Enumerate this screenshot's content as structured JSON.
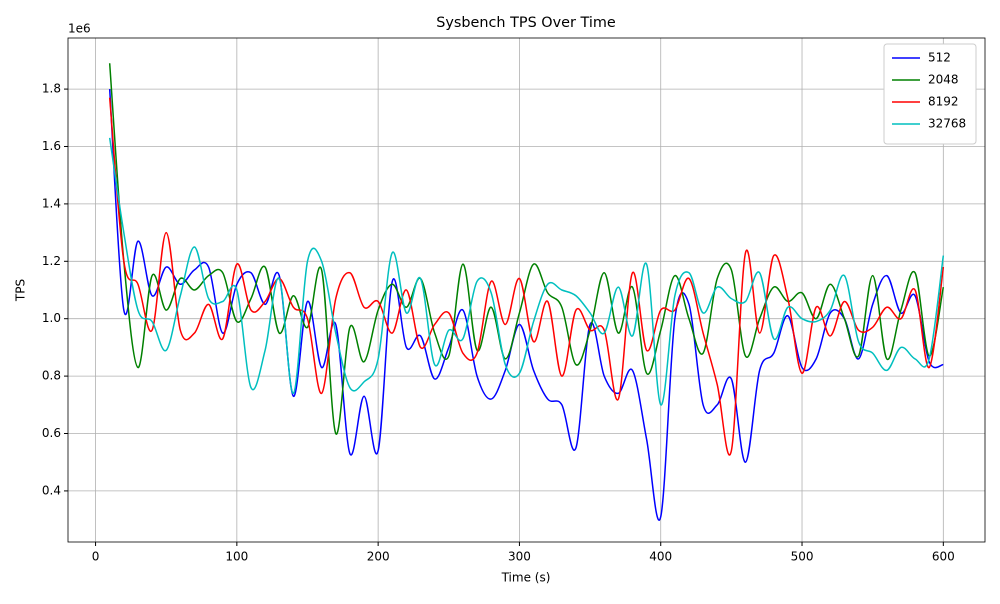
{
  "chart_data": {
    "type": "line",
    "title": "Sysbench TPS Over Time",
    "x_label": "Time (s)",
    "y_label": "TPS",
    "y_offset_label": "1e6",
    "x": [
      10,
      20,
      30,
      40,
      50,
      60,
      70,
      80,
      90,
      100,
      110,
      120,
      130,
      140,
      150,
      160,
      170,
      180,
      190,
      200,
      210,
      220,
      230,
      240,
      250,
      260,
      270,
      280,
      290,
      300,
      310,
      320,
      330,
      340,
      350,
      360,
      370,
      380,
      390,
      400,
      410,
      420,
      430,
      440,
      450,
      460,
      470,
      480,
      490,
      500,
      510,
      520,
      530,
      540,
      550,
      560,
      570,
      580,
      590,
      600
    ],
    "series": [
      {
        "name": "512",
        "color": "#0000ff",
        "values": [
          1.8,
          1.03,
          1.27,
          1.08,
          1.18,
          1.12,
          1.17,
          1.18,
          0.95,
          1.12,
          1.16,
          1.05,
          1.15,
          0.73,
          1.06,
          0.83,
          0.98,
          0.53,
          0.73,
          0.54,
          1.13,
          0.9,
          0.94,
          0.79,
          0.9,
          1.03,
          0.8,
          0.72,
          0.82,
          0.98,
          0.82,
          0.72,
          0.7,
          0.55,
          0.98,
          0.8,
          0.74,
          0.82,
          0.58,
          0.31,
          1.0,
          1.05,
          0.7,
          0.7,
          0.79,
          0.5,
          0.82,
          0.88,
          1.01,
          0.83,
          0.86,
          1.02,
          1.0,
          0.86,
          1.05,
          1.15,
          1.02,
          1.08,
          0.85,
          0.84
        ]
      },
      {
        "name": "2048",
        "color": "#008000",
        "values": [
          1.89,
          1.2,
          0.83,
          1.15,
          1.03,
          1.14,
          1.1,
          1.15,
          1.16,
          0.99,
          1.07,
          1.18,
          0.95,
          1.08,
          0.97,
          1.17,
          0.6,
          0.97,
          0.85,
          1.03,
          1.12,
          1.04,
          1.14,
          0.95,
          0.87,
          1.19,
          0.89,
          1.04,
          0.86,
          1.02,
          1.19,
          1.09,
          1.04,
          0.84,
          0.96,
          1.16,
          0.95,
          1.11,
          0.81,
          0.96,
          1.15,
          1.0,
          0.88,
          1.14,
          1.17,
          0.87,
          1.0,
          1.11,
          1.06,
          1.09,
          1.0,
          1.12,
          1.0,
          0.87,
          1.15,
          0.86,
          1.03,
          1.16,
          0.87,
          1.11
        ]
      },
      {
        "name": "8192",
        "color": "#ff0000",
        "values": [
          1.77,
          1.2,
          1.12,
          0.96,
          1.3,
          0.96,
          0.95,
          1.05,
          0.93,
          1.19,
          1.03,
          1.06,
          1.14,
          1.04,
          1.0,
          0.74,
          1.07,
          1.16,
          1.04,
          1.06,
          0.95,
          1.1,
          0.9,
          0.98,
          1.02,
          0.88,
          0.88,
          1.13,
          0.98,
          1.14,
          0.92,
          1.06,
          0.8,
          1.03,
          0.96,
          0.96,
          0.72,
          1.16,
          0.89,
          1.03,
          1.03,
          1.14,
          0.95,
          0.77,
          0.54,
          1.23,
          0.95,
          1.22,
          1.07,
          0.81,
          1.04,
          0.94,
          1.06,
          0.96,
          0.97,
          1.04,
          1.0,
          1.1,
          0.83,
          1.18
        ]
      },
      {
        "name": "32768",
        "color": "#00bfbf",
        "values": [
          1.63,
          1.3,
          1.03,
          0.99,
          0.89,
          1.08,
          1.25,
          1.07,
          1.06,
          1.1,
          0.76,
          0.89,
          1.14,
          0.74,
          1.2,
          1.2,
          0.95,
          0.76,
          0.78,
          0.86,
          1.23,
          1.02,
          1.14,
          0.84,
          0.96,
          0.93,
          1.13,
          1.09,
          0.84,
          0.81,
          0.99,
          1.12,
          1.1,
          1.08,
          1.02,
          0.95,
          1.11,
          0.94,
          1.19,
          0.7,
          1.08,
          1.16,
          1.02,
          1.11,
          1.07,
          1.06,
          1.16,
          0.93,
          1.04,
          1.0,
          0.99,
          1.03,
          1.15,
          0.92,
          0.88,
          0.82,
          0.9,
          0.86,
          0.86,
          1.22
        ]
      }
    ],
    "xlim": [
      -19.5,
      629.5
    ],
    "xticks": [
      0,
      100,
      200,
      300,
      400,
      500,
      600
    ],
    "ylim": [
      0.222,
      1.978
    ],
    "yticks": [
      0.4,
      0.6,
      0.8,
      {
        "value": 1,
        "label": "1.0"
      },
      1.2,
      1.4,
      1.6,
      1.8
    ],
    "grid": true,
    "legend": "upper right"
  }
}
